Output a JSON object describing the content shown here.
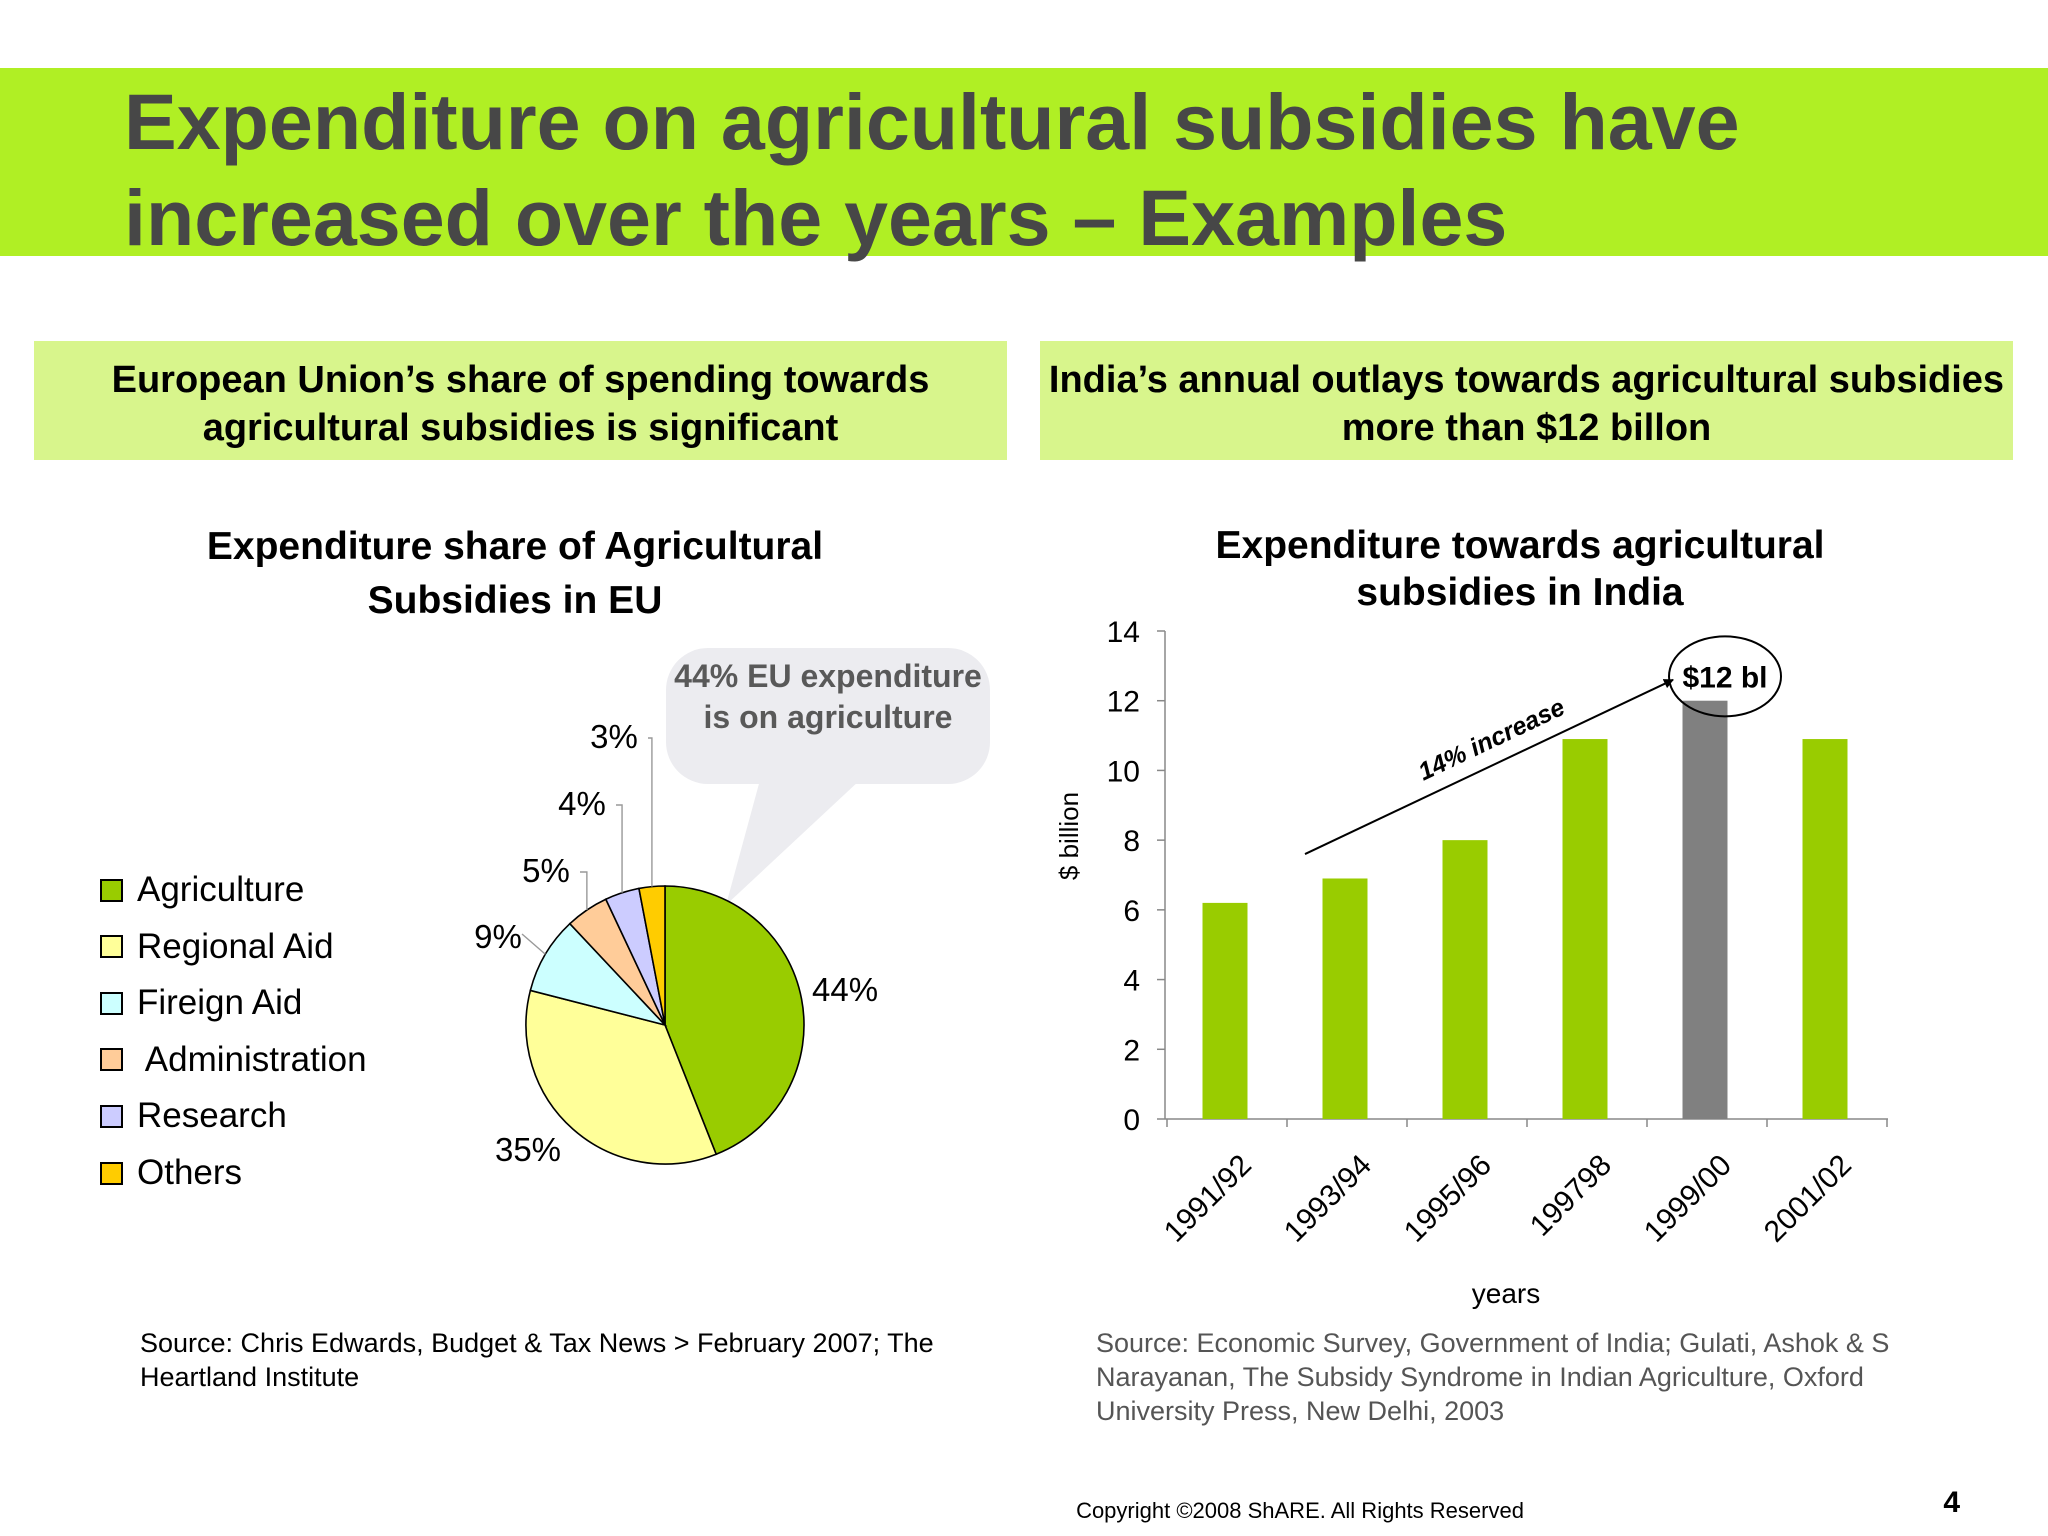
{
  "slide": {
    "title": "Expenditure on agricultural subsidies have increased over the years – Examples",
    "copyright": "Copyright ©2008 ShARE. All Rights Reserved",
    "page_number": "4"
  },
  "colors": {
    "title_band": "#b0ef24",
    "sub_band": "#d8f58c",
    "bar_green": "#99cc00",
    "bar_highlight": "#808080"
  },
  "left_panel": {
    "subtitle": "European Union’s share of spending towards agricultural subsidies is significant",
    "callout": "44% EU expenditure is on agriculture",
    "source": "Source: Chris Edwards, Budget & Tax News > February 2007; The Heartland Institute"
  },
  "right_panel": {
    "subtitle": "India’s annual outlays towards agricultural subsidies more than $12 billon",
    "annotation": "14% increase",
    "highlight_label": "$12 bl",
    "source": "Source: Economic Survey, Government of India; Gulati, Ashok & S Narayanan, The Subsidy Syndrome in Indian Agriculture, Oxford University Press, New Delhi, 2003"
  },
  "chart_data": [
    {
      "type": "pie",
      "title": "Expenditure share of Agricultural Subsidies in EU",
      "legend_position": "left",
      "categories": [
        "Agriculture",
        "Regional Aid",
        "Fireign Aid",
        " Administration",
        "Research",
        "Others"
      ],
      "values": [
        44,
        35,
        9,
        5,
        4,
        3
      ],
      "labels": [
        "44%",
        "35%",
        "9%",
        "5%",
        "4%",
        "3%"
      ],
      "colors": [
        "#99cc00",
        "#ffff99",
        "#ccffff",
        "#ffcc99",
        "#ccccff",
        "#ffcc00"
      ]
    },
    {
      "type": "bar",
      "title": "Expenditure towards agricultural subsidies in India",
      "xlabel": "years",
      "ylabel": "$ billion",
      "categories": [
        "1991/92",
        "1993/94",
        "1995/96",
        "199798",
        "1999/00",
        "2001/02"
      ],
      "values": [
        6.2,
        6.9,
        8.0,
        10.9,
        12.0,
        10.9
      ],
      "highlight_index": 4,
      "ylim": [
        0,
        14
      ],
      "yticks": [
        0,
        2,
        4,
        6,
        8,
        10,
        12,
        14
      ],
      "grid": false
    }
  ]
}
